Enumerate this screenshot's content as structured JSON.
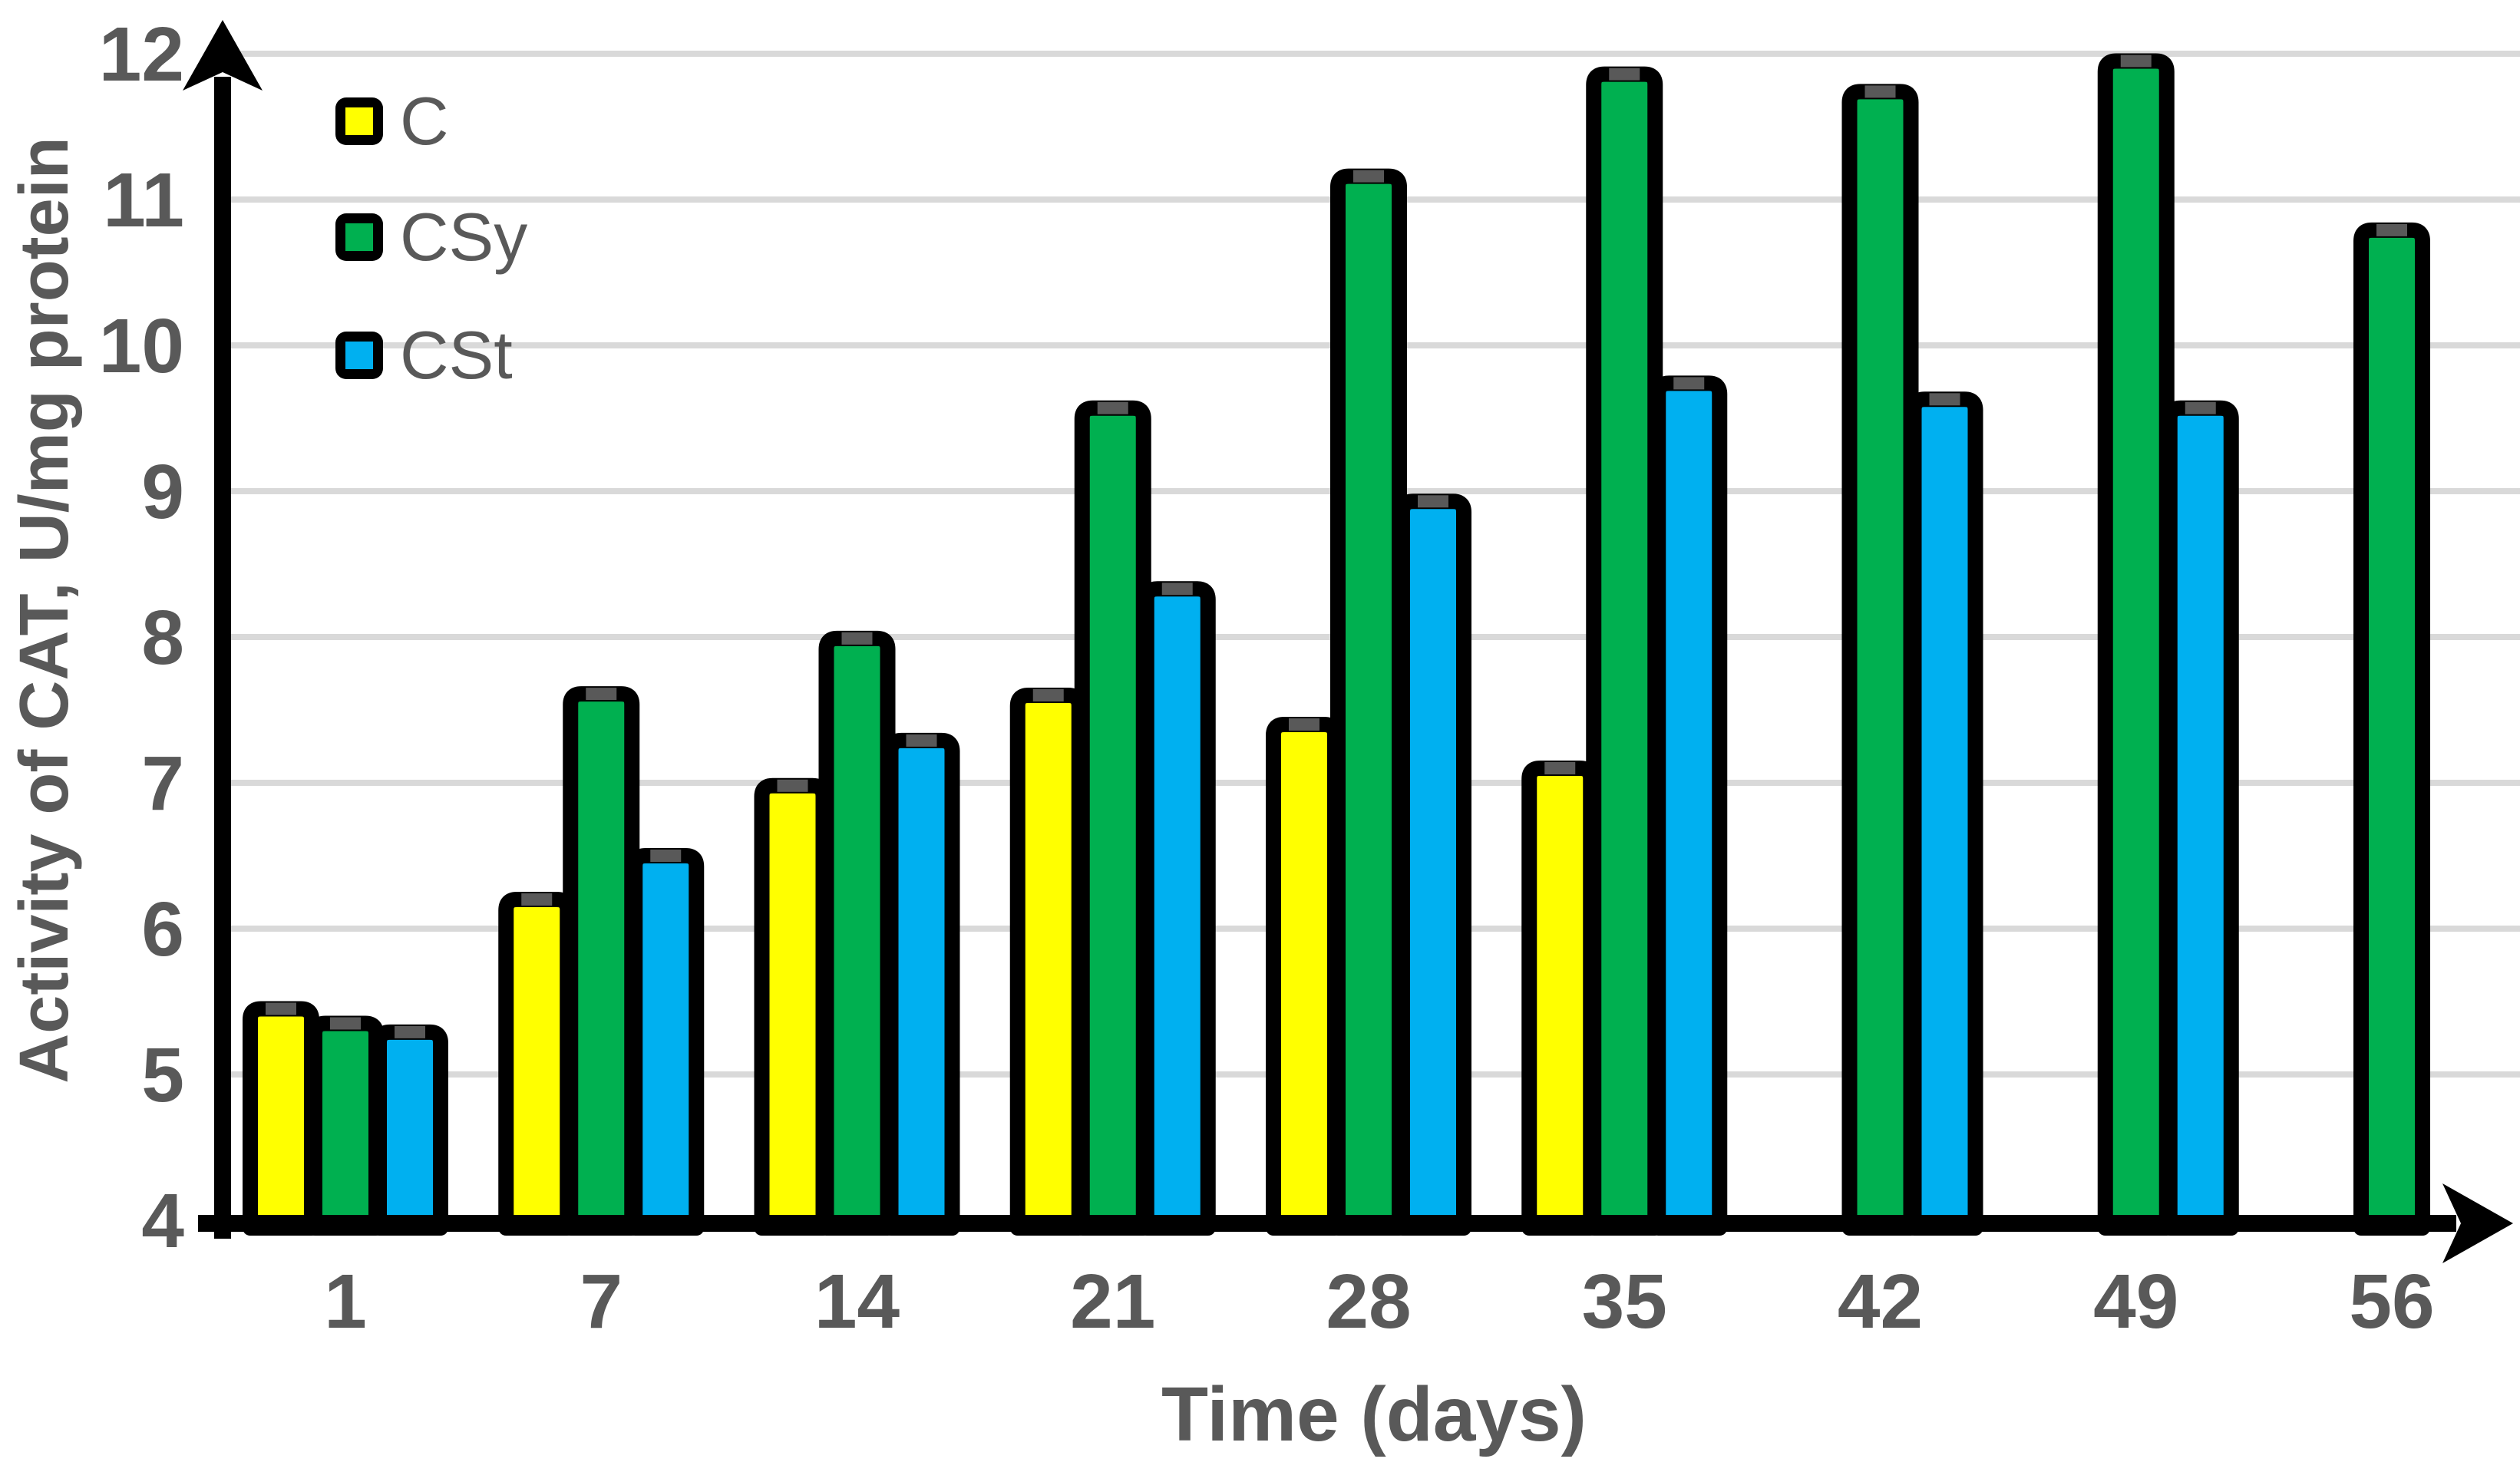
{
  "chart_data": {
    "type": "bar",
    "title": "",
    "xlabel": "Time (days)",
    "ylabel": "Activity of CAT, U/mg protein",
    "categories": [
      "1",
      "7",
      "14",
      "21",
      "28",
      "35",
      "42",
      "49",
      "56"
    ],
    "series": [
      {
        "name": "C",
        "color": "#FFFF00",
        "values": [
          5.45,
          6.2,
          6.98,
          7.6,
          7.4,
          7.1,
          null,
          null,
          null
        ]
      },
      {
        "name": "CSy",
        "color": "#00B050",
        "values": [
          5.35,
          7.61,
          7.99,
          9.57,
          11.16,
          11.86,
          11.74,
          11.95,
          10.79
        ]
      },
      {
        "name": "CSt",
        "color": "#00B0F0",
        "values": [
          5.29,
          6.5,
          7.29,
          8.33,
          8.93,
          9.74,
          9.63,
          9.57,
          null
        ]
      }
    ],
    "ylim": [
      4,
      12
    ],
    "y_ticks": [
      4,
      5,
      6,
      7,
      8,
      9,
      10,
      11,
      12
    ],
    "grid": true,
    "legend_position": "top-left",
    "bar_outline_color": "#000000",
    "error_cap_color": "#595959",
    "gridline_color": "#D9D9D9",
    "axis_color": "#000000",
    "text_color": "#595959",
    "background_color": "#FFFFFF"
  }
}
